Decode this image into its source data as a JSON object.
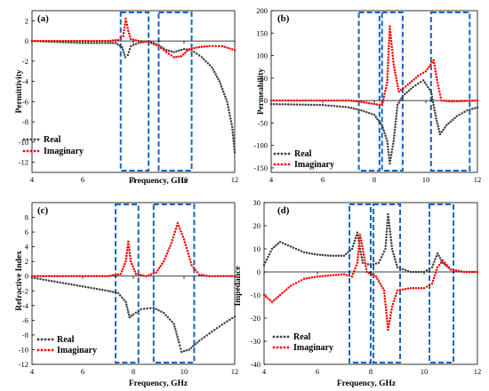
{
  "figure": {
    "background": "#ffffff",
    "axis_color": "#000000",
    "box_color": "#1565c0"
  },
  "chart_data": [
    {
      "type": "scatter",
      "panel_label": "(a)",
      "xlabel": "Frequency, GHz",
      "ylabel": "Permittivity",
      "xlim": [
        4,
        12
      ],
      "ylim": [
        -13,
        3
      ],
      "xticks": [
        4,
        6,
        8,
        10,
        12
      ],
      "yticks": [
        -12,
        -10,
        -8,
        -6,
        -4,
        -2,
        0,
        2
      ],
      "legend_position": "bottom-left",
      "highlight_ranges": [
        [
          7.5,
          8.6
        ],
        [
          9.0,
          10.3
        ]
      ],
      "series": [
        {
          "name": "Real",
          "color": "#404040",
          "points": [
            [
              4,
              0
            ],
            [
              5,
              -0.1
            ],
            [
              6,
              -0.2
            ],
            [
              7,
              -0.2
            ],
            [
              7.3,
              -0.2
            ],
            [
              7.55,
              -0.6
            ],
            [
              7.68,
              -1.6
            ],
            [
              7.78,
              -1.4
            ],
            [
              7.9,
              -0.5
            ],
            [
              8.2,
              -0.2
            ],
            [
              8.6,
              0
            ],
            [
              9.0,
              -0.4
            ],
            [
              9.3,
              -0.9
            ],
            [
              9.6,
              -1.1
            ],
            [
              10.0,
              -0.8
            ],
            [
              10.3,
              -0.9
            ],
            [
              10.7,
              -1.6
            ],
            [
              11.1,
              -2.6
            ],
            [
              11.4,
              -4.0
            ],
            [
              11.7,
              -6.0
            ],
            [
              11.9,
              -8.5
            ],
            [
              12,
              -11
            ]
          ]
        },
        {
          "name": "Imaginary",
          "color": "#ff0000",
          "points": [
            [
              4,
              0
            ],
            [
              5,
              0
            ],
            [
              6,
              0
            ],
            [
              7,
              0
            ],
            [
              7.4,
              0.1
            ],
            [
              7.6,
              0.5
            ],
            [
              7.7,
              2.2
            ],
            [
              7.8,
              1.0
            ],
            [
              7.9,
              0.2
            ],
            [
              8.2,
              0
            ],
            [
              8.6,
              -0.1
            ],
            [
              9.0,
              -0.5
            ],
            [
              9.3,
              -1.1
            ],
            [
              9.6,
              -1.6
            ],
            [
              9.9,
              -1.5
            ],
            [
              10.2,
              -0.8
            ],
            [
              10.6,
              -0.6
            ],
            [
              11.0,
              -0.5
            ],
            [
              11.5,
              -0.5
            ],
            [
              12,
              -0.9
            ]
          ]
        }
      ]
    },
    {
      "type": "scatter",
      "panel_label": "(b)",
      "xlabel": "",
      "ylabel": "Permeability",
      "xlim": [
        4,
        12
      ],
      "ylim": [
        -160,
        200
      ],
      "xticks": [
        4,
        6,
        8,
        10,
        12
      ],
      "yticks": [
        -150,
        -100,
        -50,
        0,
        50,
        100,
        150,
        200
      ],
      "legend_position": "bottom-left",
      "highlight_ranges": [
        [
          7.4,
          8.2
        ],
        [
          8.3,
          9.1
        ],
        [
          10.2,
          11.7
        ]
      ],
      "series": [
        {
          "name": "Real",
          "color": "#404040",
          "points": [
            [
              4,
              -8
            ],
            [
              5,
              -9
            ],
            [
              6,
              -10
            ],
            [
              7,
              -15
            ],
            [
              7.5,
              -22
            ],
            [
              8.0,
              -32
            ],
            [
              8.3,
              -55
            ],
            [
              8.5,
              -90
            ],
            [
              8.6,
              -140
            ],
            [
              8.75,
              -90
            ],
            [
              8.9,
              -10
            ],
            [
              9.1,
              10
            ],
            [
              9.5,
              30
            ],
            [
              9.9,
              45
            ],
            [
              10.2,
              20
            ],
            [
              10.4,
              -40
            ],
            [
              10.55,
              -75
            ],
            [
              10.8,
              -55
            ],
            [
              11.2,
              -35
            ],
            [
              11.6,
              -22
            ],
            [
              12,
              -15
            ]
          ]
        },
        {
          "name": "Imaginary",
          "color": "#ff0000",
          "points": [
            [
              4,
              0
            ],
            [
              5,
              0
            ],
            [
              6,
              0
            ],
            [
              7,
              0
            ],
            [
              7.5,
              -3
            ],
            [
              8.0,
              -8
            ],
            [
              8.3,
              -10
            ],
            [
              8.5,
              40
            ],
            [
              8.6,
              165
            ],
            [
              8.75,
              80
            ],
            [
              8.95,
              20
            ],
            [
              9.3,
              35
            ],
            [
              9.7,
              55
            ],
            [
              10.0,
              65
            ],
            [
              10.3,
              90
            ],
            [
              10.45,
              40
            ],
            [
              10.6,
              0
            ],
            [
              11,
              -2
            ],
            [
              11.5,
              -1
            ],
            [
              12,
              0
            ]
          ]
        }
      ]
    },
    {
      "type": "scatter",
      "panel_label": "(c)",
      "xlabel": "Frequency, GHz",
      "ylabel": "Refractive Index",
      "xlim": [
        4,
        12
      ],
      "ylim": [
        -12,
        10
      ],
      "xticks": [
        4,
        6,
        8,
        10,
        12
      ],
      "yticks": [
        -12,
        -10,
        -8,
        -6,
        -4,
        -2,
        0,
        2,
        4,
        6,
        8
      ],
      "legend_position": "bottom-left",
      "highlight_ranges": [
        [
          7.3,
          8.2
        ],
        [
          8.8,
          10.4
        ]
      ],
      "series": [
        {
          "name": "Real",
          "color": "#404040",
          "points": [
            [
              4,
              -0.2
            ],
            [
              5,
              -0.8
            ],
            [
              6,
              -1.4
            ],
            [
              7,
              -2.0
            ],
            [
              7.4,
              -2.3
            ],
            [
              7.7,
              -3.5
            ],
            [
              7.85,
              -5.6
            ],
            [
              8.0,
              -5.2
            ],
            [
              8.3,
              -4.5
            ],
            [
              8.8,
              -4.3
            ],
            [
              9.2,
              -5.0
            ],
            [
              9.6,
              -6.5
            ],
            [
              9.8,
              -9.0
            ],
            [
              9.9,
              -10.3
            ],
            [
              10.2,
              -10.0
            ],
            [
              10.6,
              -8.8
            ],
            [
              11.0,
              -7.8
            ],
            [
              11.5,
              -6.6
            ],
            [
              12,
              -5.5
            ]
          ]
        },
        {
          "name": "Imaginary",
          "color": "#ff0000",
          "points": [
            [
              4,
              0
            ],
            [
              5,
              0
            ],
            [
              6,
              0
            ],
            [
              7,
              0
            ],
            [
              7.5,
              0.3
            ],
            [
              7.7,
              2.0
            ],
            [
              7.8,
              4.7
            ],
            [
              7.9,
              2.0
            ],
            [
              8.1,
              0.3
            ],
            [
              8.5,
              0
            ],
            [
              8.9,
              0.5
            ],
            [
              9.2,
              2.0
            ],
            [
              9.5,
              4.5
            ],
            [
              9.75,
              7.2
            ],
            [
              10.0,
              5.0
            ],
            [
              10.3,
              1.5
            ],
            [
              10.6,
              0.2
            ],
            [
              11,
              0
            ],
            [
              12,
              0
            ]
          ]
        }
      ]
    },
    {
      "type": "scatter",
      "panel_label": "(d)",
      "xlabel": "Frequency, GHz",
      "ylabel": "Impedance",
      "xlim": [
        4,
        12
      ],
      "ylim": [
        -40,
        30
      ],
      "xticks": [
        4,
        6,
        8,
        10,
        12
      ],
      "yticks": [
        -40,
        -30,
        -20,
        -10,
        0,
        10,
        20,
        30
      ],
      "legend_position": "bottom-left",
      "highlight_ranges": [
        [
          7.2,
          8.0
        ],
        [
          8.1,
          9.1
        ],
        [
          10.2,
          11.1
        ]
      ],
      "series": [
        {
          "name": "Real",
          "color": "#404040",
          "points": [
            [
              4,
              3
            ],
            [
              4.3,
              10
            ],
            [
              4.6,
              13
            ],
            [
              5,
              11
            ],
            [
              5.5,
              8.5
            ],
            [
              6,
              7.5
            ],
            [
              6.5,
              7
            ],
            [
              7,
              7
            ],
            [
              7.3,
              10
            ],
            [
              7.5,
              17
            ],
            [
              7.6,
              10
            ],
            [
              7.7,
              4
            ],
            [
              8.0,
              3
            ],
            [
              8.3,
              4
            ],
            [
              8.55,
              10
            ],
            [
              8.65,
              25
            ],
            [
              8.8,
              10
            ],
            [
              9.0,
              2
            ],
            [
              9.5,
              0
            ],
            [
              10.0,
              0
            ],
            [
              10.3,
              2
            ],
            [
              10.5,
              8
            ],
            [
              10.7,
              4
            ],
            [
              11,
              1
            ],
            [
              11.5,
              0
            ],
            [
              12,
              0
            ]
          ]
        },
        {
          "name": "Imaginary",
          "color": "#ff0000",
          "points": [
            [
              4,
              -10
            ],
            [
              4.3,
              -13
            ],
            [
              4.6,
              -10
            ],
            [
              5,
              -6
            ],
            [
              5.5,
              -3
            ],
            [
              6,
              -2
            ],
            [
              6.5,
              -1.5
            ],
            [
              7,
              -1
            ],
            [
              7.3,
              -2
            ],
            [
              7.5,
              4
            ],
            [
              7.6,
              16
            ],
            [
              7.7,
              10
            ],
            [
              7.85,
              0
            ],
            [
              8.2,
              -2
            ],
            [
              8.5,
              -8
            ],
            [
              8.65,
              -25
            ],
            [
              8.8,
              -15
            ],
            [
              9.0,
              -8
            ],
            [
              9.5,
              -7
            ],
            [
              10.0,
              -7
            ],
            [
              10.3,
              -5
            ],
            [
              10.5,
              2
            ],
            [
              10.7,
              5
            ],
            [
              11,
              1
            ],
            [
              11.5,
              0
            ],
            [
              12,
              0
            ]
          ]
        }
      ]
    }
  ]
}
